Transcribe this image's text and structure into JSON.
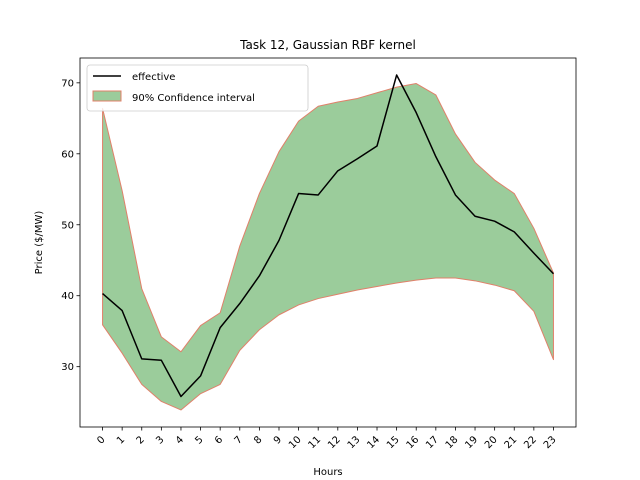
{
  "chart_data": {
    "type": "line",
    "title": "Task 12, Gaussian RBF kernel",
    "xlabel": "Hours",
    "ylabel": "Price ($/MW)",
    "x": [
      0,
      1,
      2,
      3,
      4,
      5,
      6,
      7,
      8,
      9,
      10,
      11,
      12,
      13,
      14,
      15,
      16,
      17,
      18,
      19,
      20,
      21,
      22,
      23
    ],
    "xlim": [
      -1.15,
      24.15
    ],
    "ylim": [
      21.5,
      73.5
    ],
    "yticks": [
      30,
      40,
      50,
      60,
      70
    ],
    "series": [
      {
        "name": "effective",
        "kind": "line",
        "color": "#000000",
        "values": [
          40.3,
          37.9,
          31.1,
          30.9,
          25.8,
          28.7,
          35.5,
          38.9,
          42.8,
          47.8,
          54.4,
          54.2,
          57.6,
          59.3,
          61.1,
          71.1,
          65.8,
          59.6,
          54.2,
          51.2,
          50.5,
          49.0,
          46.0,
          43.1
        ]
      },
      {
        "name": "90% Confidence interval",
        "kind": "band",
        "fill": "#9bcc9b",
        "edge": "#e0806a",
        "lower": [
          35.9,
          31.9,
          27.5,
          25.1,
          23.9,
          26.2,
          27.5,
          32.3,
          35.2,
          37.3,
          38.7,
          39.6,
          40.2,
          40.8,
          41.3,
          41.8,
          42.2,
          42.5,
          42.5,
          42.1,
          41.5,
          40.7,
          37.8,
          31.0
        ],
        "upper": [
          66.4,
          54.8,
          41.0,
          34.2,
          32.1,
          35.8,
          37.6,
          47.0,
          54.4,
          60.3,
          64.6,
          66.7,
          67.3,
          67.8,
          68.6,
          69.4,
          69.9,
          68.3,
          62.8,
          58.8,
          56.3,
          54.4,
          49.5,
          43.2
        ]
      }
    ],
    "legend": {
      "position": "top-left"
    }
  }
}
